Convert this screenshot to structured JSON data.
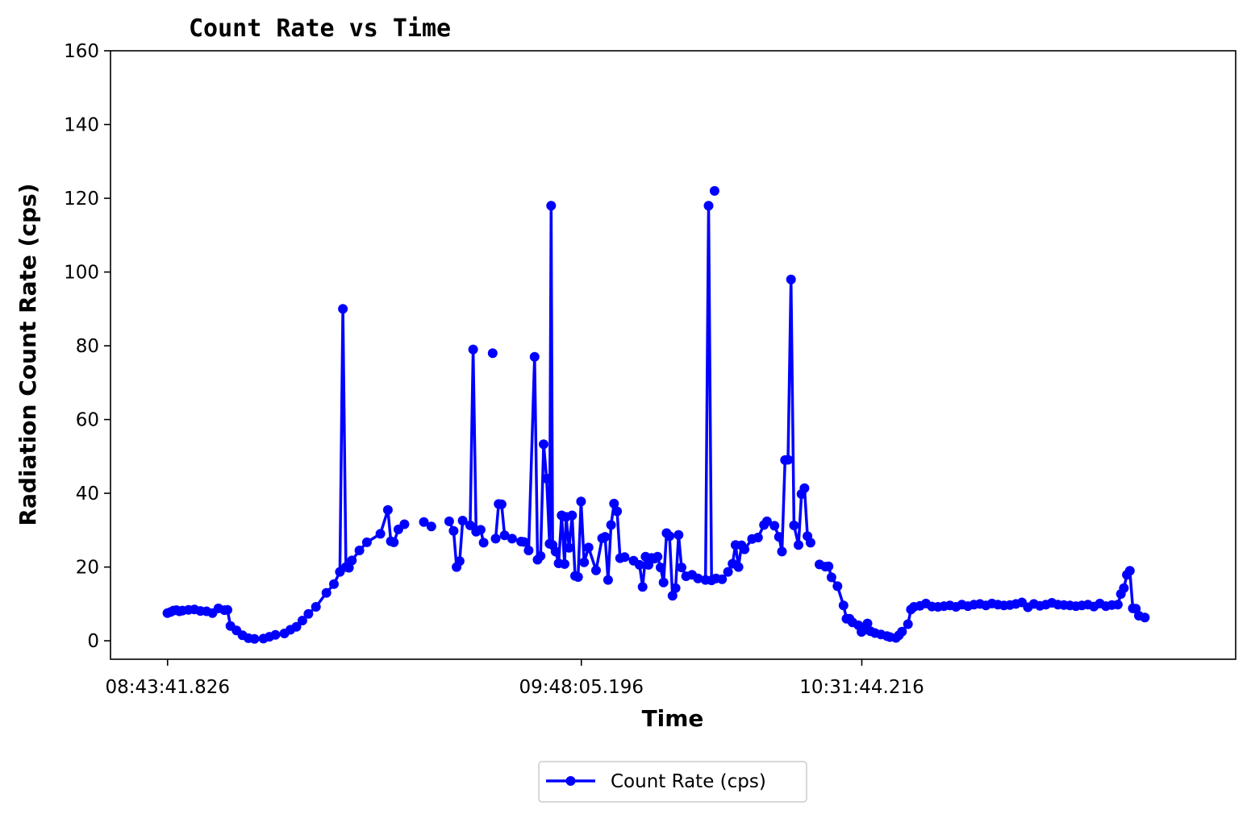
{
  "chart_data": {
    "type": "line",
    "title": "Count Rate vs Time",
    "xlabel": "Time",
    "ylabel": "Radiation Count Rate (cps)",
    "ylim": [
      -5,
      160
    ],
    "yticks": [
      0,
      20,
      40,
      60,
      80,
      100,
      120,
      140,
      160
    ],
    "x_axis_kind": "time of day",
    "x_range": [
      "08:34:49",
      "11:29:55"
    ],
    "x_tick_values": [
      "08:43:41.826",
      "09:48:05.196",
      "10:31:44.216"
    ],
    "x_tick_labels": [
      "08:43:41.826",
      "09:48:05.196",
      "10:31:44.216"
    ],
    "legend": {
      "placement": "bottom-center",
      "entries": [
        "Count Rate (cps)"
      ]
    },
    "grid": false,
    "series": [
      {
        "name": "Count Rate (cps)",
        "color": "#0000ff",
        "marker": "circle",
        "segments": [
          [
            [
              "08:43:41",
              7.5
            ],
            [
              "08:44:09",
              7.8
            ],
            [
              "08:44:37",
              8.2
            ],
            [
              "08:45:05",
              8.3
            ],
            [
              "08:45:33",
              8.0
            ],
            [
              "08:46:01",
              8.2
            ],
            [
              "08:46:57",
              8.4
            ],
            [
              "08:47:53",
              8.5
            ],
            [
              "08:48:49",
              8.1
            ],
            [
              "08:49:45",
              8.0
            ],
            [
              "08:50:41",
              7.5
            ],
            [
              "08:51:37",
              8.8
            ],
            [
              "08:52:33",
              8.3
            ],
            [
              "08:53:01",
              8.4
            ],
            [
              "08:53:29",
              4.0
            ],
            [
              "08:54:25",
              2.8
            ],
            [
              "08:55:21",
              1.5
            ],
            [
              "08:56:17",
              0.7
            ],
            [
              "08:57:13",
              0.5
            ],
            [
              "08:58:37",
              0.6
            ],
            [
              "08:59:33",
              1.1
            ],
            [
              "09:00:29",
              1.6
            ],
            [
              "09:01:53",
              2.0
            ],
            [
              "09:02:49",
              3.0
            ],
            [
              "09:03:45",
              3.8
            ],
            [
              "09:04:41",
              5.5
            ],
            [
              "09:05:37",
              7.3
            ],
            [
              "09:06:47",
              9.2
            ],
            [
              "09:08:25",
              13.0
            ],
            [
              "09:09:35",
              15.4
            ],
            [
              "09:10:31",
              18.7
            ],
            [
              "09:10:59",
              90.0
            ],
            [
              "09:11:27",
              20.0
            ],
            [
              "09:11:55",
              19.8
            ],
            [
              "09:12:23",
              21.8
            ],
            [
              "09:13:33",
              24.5
            ],
            [
              "09:14:43",
              26.7
            ],
            [
              "09:16:49",
              29.0
            ],
            [
              "09:17:59",
              35.5
            ],
            [
              "09:18:27",
              27.0
            ],
            [
              "09:18:55",
              26.7
            ],
            [
              "09:19:37",
              30.2
            ],
            [
              "09:20:33",
              31.6
            ]
          ],
          [
            [
              "09:23:35",
              32.2
            ],
            [
              "09:24:45",
              31.0
            ]
          ],
          [
            [
              "09:27:31",
              32.4
            ],
            [
              "09:28:13",
              29.8
            ],
            [
              "09:28:41",
              20.0
            ],
            [
              "09:29:09",
              21.6
            ],
            [
              "09:29:37",
              32.6
            ],
            [
              "09:30:47",
              31.3
            ],
            [
              "09:31:15",
              79.0
            ],
            [
              "09:31:43",
              29.6
            ],
            [
              "09:32:25",
              30.1
            ],
            [
              "09:32:53",
              26.6
            ]
          ],
          [
            [
              "09:34:17",
              78.0
            ]
          ],
          [
            [
              "09:34:45",
              27.7
            ],
            [
              "09:35:13",
              37.1
            ],
            [
              "09:35:41",
              37.0
            ],
            [
              "09:36:09",
              28.6
            ],
            [
              "09:37:19",
              27.7
            ],
            [
              "09:38:43",
              26.9
            ],
            [
              "09:39:11",
              26.8
            ],
            [
              "09:39:53",
              24.5
            ],
            [
              "09:40:49",
              77.0
            ],
            [
              "09:41:17",
              22.0
            ],
            [
              "09:41:45",
              23.0
            ],
            [
              "09:42:13",
              53.3
            ],
            [
              "09:42:41",
              44.0
            ],
            [
              "09:43:09",
              26.3
            ],
            [
              "09:43:23",
              118.0
            ],
            [
              "09:43:37",
              26.0
            ],
            [
              "09:44:05",
              24.2
            ],
            [
              "09:44:33",
              21.0
            ],
            [
              "09:45:01",
              34.0
            ],
            [
              "09:45:29",
              20.8
            ],
            [
              "09:45:43",
              33.6
            ],
            [
              "09:46:11",
              25.2
            ],
            [
              "09:46:39",
              34.0
            ],
            [
              "09:47:07",
              17.6
            ],
            [
              "09:47:35",
              17.3
            ],
            [
              "09:48:03",
              37.8
            ],
            [
              "09:48:31",
              21.3
            ],
            [
              "09:49:13",
              25.3
            ],
            [
              "09:50:23",
              19.1
            ],
            [
              "09:51:19",
              27.8
            ],
            [
              "09:51:47",
              28.2
            ],
            [
              "09:52:15",
              16.5
            ],
            [
              "09:52:43",
              31.4
            ],
            [
              "09:53:11",
              37.2
            ],
            [
              "09:53:39",
              35.1
            ],
            [
              "09:54:07",
              22.4
            ],
            [
              "09:54:49",
              22.7
            ],
            [
              "09:56:13",
              21.7
            ],
            [
              "09:57:09",
              20.6
            ],
            [
              "09:57:37",
              14.6
            ],
            [
              "09:58:05",
              22.8
            ],
            [
              "09:58:33",
              20.6
            ],
            [
              "09:59:01",
              22.5
            ],
            [
              "09:59:29",
              22.3
            ],
            [
              "09:59:57",
              22.8
            ],
            [
              "10:00:25",
              19.9
            ],
            [
              "10:00:53",
              15.8
            ],
            [
              "10:01:21",
              29.2
            ],
            [
              "10:01:49",
              28.4
            ],
            [
              "10:02:17",
              12.2
            ],
            [
              "10:02:45",
              14.3
            ],
            [
              "10:03:13",
              28.7
            ],
            [
              "10:03:41",
              19.9
            ],
            [
              "10:04:23",
              17.5
            ],
            [
              "10:05:19",
              17.9
            ],
            [
              "10:06:15",
              16.9
            ],
            [
              "10:07:25",
              16.5
            ],
            [
              "10:07:53",
              118.0
            ],
            [
              "10:08:21",
              16.4
            ]
          ],
          [
            [
              "10:08:49",
              122.0
            ]
          ],
          [
            [
              "10:09:03",
              16.9
            ],
            [
              "10:09:59",
              16.7
            ],
            [
              "10:10:55",
              18.7
            ],
            [
              "10:11:37",
              20.9
            ],
            [
              "10:12:05",
              26.0
            ],
            [
              "10:12:33",
              20.0
            ],
            [
              "10:13:01",
              25.9
            ],
            [
              "10:13:29",
              24.8
            ],
            [
              "10:14:39",
              27.6
            ],
            [
              "10:15:35",
              28.0
            ],
            [
              "10:16:31",
              31.4
            ],
            [
              "10:16:59",
              32.4
            ],
            [
              "10:18:09",
              31.2
            ],
            [
              "10:18:51",
              28.2
            ],
            [
              "10:19:19",
              24.2
            ],
            [
              "10:19:47",
              49.0
            ],
            [
              "10:20:15",
              49.1
            ],
            [
              "10:20:43",
              98.0
            ],
            [
              "10:21:11",
              31.3
            ],
            [
              "10:21:53",
              26.0
            ],
            [
              "10:22:21",
              39.8
            ],
            [
              "10:22:49",
              41.4
            ],
            [
              "10:23:17",
              28.4
            ],
            [
              "10:23:45",
              26.6
            ]
          ],
          [
            [
              "10:25:09",
              20.7
            ],
            [
              "10:26:05",
              20.1
            ],
            [
              "10:26:33",
              20.2
            ],
            [
              "10:27:01",
              17.2
            ],
            [
              "10:27:57",
              14.8
            ],
            [
              "10:28:53",
              9.6
            ],
            [
              "10:29:21",
              6.0
            ],
            [
              "10:29:49",
              6.0
            ],
            [
              "10:30:17",
              5.0
            ],
            [
              "10:31:13",
              4.2
            ],
            [
              "10:31:41",
              2.4
            ],
            [
              "10:32:09",
              3.0
            ],
            [
              "10:32:37",
              4.7
            ],
            [
              "10:33:05",
              2.6
            ],
            [
              "10:33:47",
              2.1
            ],
            [
              "10:34:43",
              1.7
            ],
            [
              "10:35:39",
              1.3
            ],
            [
              "10:36:07",
              1.0
            ],
            [
              "10:37:03",
              0.8
            ],
            [
              "10:37:31",
              1.5
            ],
            [
              "10:37:59",
              2.5
            ],
            [
              "10:38:55",
              4.5
            ],
            [
              "10:39:23",
              8.5
            ],
            [
              "10:39:51",
              9.2
            ],
            [
              "10:40:47",
              9.5
            ],
            [
              "10:41:43",
              10.1
            ],
            [
              "10:42:39",
              9.3
            ],
            [
              "10:43:35",
              9.2
            ],
            [
              "10:44:31",
              9.4
            ],
            [
              "10:45:27",
              9.6
            ],
            [
              "10:46:23",
              9.2
            ],
            [
              "10:47:19",
              9.8
            ],
            [
              "10:48:15",
              9.4
            ],
            [
              "10:49:11",
              9.8
            ],
            [
              "10:50:07",
              10.0
            ],
            [
              "10:51:03",
              9.6
            ],
            [
              "10:51:59",
              10.1
            ],
            [
              "10:52:55",
              9.8
            ],
            [
              "10:53:51",
              9.6
            ],
            [
              "10:54:47",
              9.7
            ],
            [
              "10:55:43",
              10.0
            ],
            [
              "10:56:39",
              10.4
            ],
            [
              "10:57:35",
              9.1
            ],
            [
              "10:58:31",
              10.0
            ],
            [
              "10:59:27",
              9.5
            ],
            [
              "11:00:23",
              9.8
            ],
            [
              "11:01:19",
              10.3
            ],
            [
              "11:02:15",
              9.8
            ],
            [
              "11:03:11",
              9.7
            ],
            [
              "11:04:07",
              9.6
            ],
            [
              "11:05:03",
              9.4
            ],
            [
              "11:05:59",
              9.6
            ],
            [
              "11:06:55",
              9.8
            ],
            [
              "11:07:51",
              9.3
            ],
            [
              "11:08:47",
              10.1
            ],
            [
              "11:09:43",
              9.4
            ],
            [
              "11:10:39",
              9.7
            ],
            [
              "11:11:35",
              9.8
            ],
            [
              "11:12:03",
              12.7
            ],
            [
              "11:12:31",
              14.3
            ],
            [
              "11:12:59",
              17.9
            ],
            [
              "11:13:27",
              19.0
            ],
            [
              "11:13:55",
              8.8
            ],
            [
              "11:14:23",
              8.7
            ],
            [
              "11:14:51",
              6.8
            ],
            [
              "11:15:47",
              6.3
            ]
          ]
        ]
      }
    ]
  }
}
